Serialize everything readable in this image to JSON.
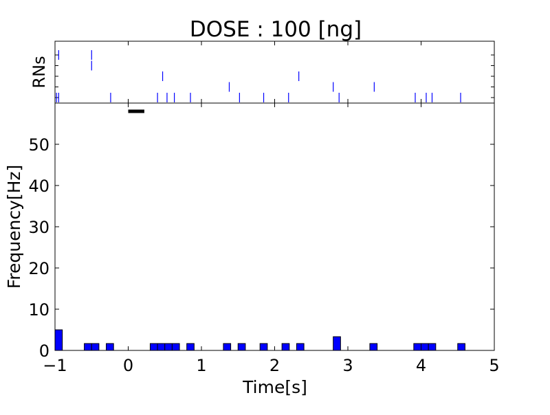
{
  "chart_data": {
    "type": "bar",
    "title": "DOSE : 100 [ng]",
    "raster": {
      "ylabel": "RNs",
      "rows": [
        {
          "row": 0,
          "spikes": [
            -0.98,
            -0.95,
            -0.24,
            0.4,
            0.53,
            0.63,
            0.85,
            1.52,
            1.85,
            2.19,
            2.88,
            3.92,
            4.07,
            4.15,
            4.54
          ]
        },
        {
          "row": 1,
          "spikes": [
            1.38,
            2.8,
            3.36
          ]
        },
        {
          "row": 2,
          "spikes": [
            0.47,
            2.33
          ]
        },
        {
          "row": 3,
          "spikes": [
            -0.5
          ]
        },
        {
          "row": 4,
          "spikes": [
            -0.95,
            -0.5
          ]
        }
      ]
    },
    "histogram": {
      "xlabel": "Time[s]",
      "ylabel": "Frequency[Hz]",
      "xlim": [
        -1,
        5
      ],
      "ylim": [
        0,
        60
      ],
      "xticks": [
        "−1",
        "0",
        "1",
        "2",
        "3",
        "4",
        "5"
      ],
      "yticks": [
        "0",
        "10",
        "20",
        "30",
        "40",
        "50"
      ],
      "bin_width": 0.1,
      "bins": [
        {
          "x": -1.0,
          "value": 5
        },
        {
          "x": -0.6,
          "value": 1.67
        },
        {
          "x": -0.5,
          "value": 1.67
        },
        {
          "x": -0.3,
          "value": 1.67
        },
        {
          "x": 0.3,
          "value": 1.67
        },
        {
          "x": 0.4,
          "value": 1.67
        },
        {
          "x": 0.5,
          "value": 1.67
        },
        {
          "x": 0.6,
          "value": 1.67
        },
        {
          "x": 0.8,
          "value": 1.67
        },
        {
          "x": 1.3,
          "value": 1.67
        },
        {
          "x": 1.5,
          "value": 1.67
        },
        {
          "x": 1.8,
          "value": 1.67
        },
        {
          "x": 2.1,
          "value": 1.67
        },
        {
          "x": 2.3,
          "value": 1.67
        },
        {
          "x": 2.8,
          "value": 3.33
        },
        {
          "x": 3.3,
          "value": 1.67
        },
        {
          "x": 3.9,
          "value": 1.67
        },
        {
          "x": 4.0,
          "value": 1.67
        },
        {
          "x": 4.1,
          "value": 1.67
        },
        {
          "x": 4.5,
          "value": 1.67
        }
      ],
      "stimulus": {
        "start": 0.0,
        "end": 0.22,
        "level": 58
      }
    },
    "grid": false,
    "colors": {
      "bar": "#0000ff",
      "raster": "#0000ff",
      "stimulus": "#000000"
    }
  }
}
